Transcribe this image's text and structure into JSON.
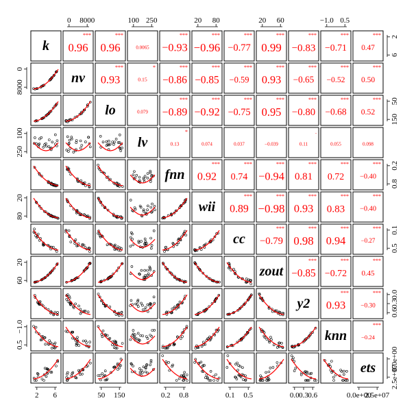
{
  "chart_data": {
    "type": "scatter",
    "variables": [
      "k",
      "nv",
      "lo",
      "lv",
      "fnn",
      "wii",
      "cc",
      "zout",
      "y2",
      "knn",
      "ets"
    ],
    "correlations": [
      [
        "",
        "0.96",
        "0.96",
        "0.0065",
        "−0.93",
        "−0.96",
        "−0.77",
        "0.99",
        "−0.83",
        "−0.71",
        "0.47"
      ],
      [
        "",
        "",
        "0.93",
        "0.15",
        "−0.86",
        "−0.85",
        "−0.59",
        "0.93",
        "−0.65",
        "−0.52",
        "0.50"
      ],
      [
        "",
        "",
        "",
        "0.079",
        "−0.89",
        "−0.92",
        "−0.75",
        "0.95",
        "−0.80",
        "−0.68",
        "0.52"
      ],
      [
        "",
        "",
        "",
        "",
        "0.13",
        "0.074",
        "0.037",
        "−0.039",
        "0.11",
        "0.055",
        "0.098"
      ],
      [
        "",
        "",
        "",
        "",
        "",
        "0.92",
        "0.74",
        "−0.94",
        "0.81",
        "0.72",
        "−0.40"
      ],
      [
        "",
        "",
        "",
        "",
        "",
        "",
        "0.89",
        "−0.98",
        "0.93",
        "0.83",
        "−0.40"
      ],
      [
        "",
        "",
        "",
        "",
        "",
        "",
        "",
        "−0.79",
        "0.98",
        "0.94",
        "−0.27"
      ],
      [
        "",
        "",
        "",
        "",
        "",
        "",
        "",
        "",
        "−0.85",
        "−0.72",
        "0.45"
      ],
      [
        "",
        "",
        "",
        "",
        "",
        "",
        "",
        "",
        "",
        "0.93",
        "−0.30"
      ],
      [
        "",
        "",
        "",
        "",
        "",
        "",
        "",
        "",
        "",
        "",
        "−0.24"
      ]
    ],
    "stars": [
      [
        "",
        "***",
        "***",
        "",
        "***",
        "***",
        "***",
        "***",
        "***",
        "***",
        "***"
      ],
      [
        "",
        "",
        "***",
        "*",
        "***",
        "***",
        "***",
        "***",
        "***",
        "***",
        "***"
      ],
      [
        "",
        "",
        "",
        "",
        "***",
        "***",
        "***",
        "***",
        "***",
        "***",
        "***"
      ],
      [
        "",
        "",
        "",
        "",
        "*",
        "",
        "",
        "",
        ".",
        "",
        ""
      ],
      [
        "",
        "",
        "",
        "",
        "",
        "***",
        "***",
        "***",
        "***",
        "***",
        "***"
      ],
      [
        "",
        "",
        "",
        "",
        "",
        "",
        "***",
        "***",
        "***",
        "***",
        "***"
      ],
      [
        "",
        "",
        "",
        "",
        "",
        "",
        "",
        "***",
        "***",
        "***",
        "***"
      ],
      [
        "",
        "",
        "",
        "",
        "",
        "",
        "",
        "",
        "***",
        "***",
        "***"
      ],
      [
        "",
        "",
        "",
        "",
        "",
        "",
        "",
        "",
        "",
        "***",
        "***"
      ],
      [
        "",
        "",
        "",
        "",
        "",
        "",
        "",
        "",
        "",
        "",
        "***"
      ]
    ],
    "ticks_top": [
      {
        "col": 1,
        "labels": [
          "0",
          "8000"
        ]
      },
      {
        "col": 3,
        "labels": [
          "100",
          "250"
        ]
      },
      {
        "col": 5,
        "labels": [
          "20",
          "80"
        ]
      },
      {
        "col": 7,
        "labels": [
          "20",
          "60"
        ]
      },
      {
        "col": 9,
        "labels": [
          "−1.0",
          "0.5"
        ]
      }
    ],
    "ticks_bottom": [
      {
        "col": 0,
        "labels": [
          "2",
          "6"
        ]
      },
      {
        "col": 2,
        "labels": [
          "50",
          "150"
        ]
      },
      {
        "col": 4,
        "labels": [
          "0.2",
          "0.8"
        ]
      },
      {
        "col": 6,
        "labels": [
          "0.1",
          "0.5"
        ]
      },
      {
        "col": 8,
        "labels": [
          "0.0",
          "0.3",
          "0.6"
        ]
      },
      {
        "col": 10,
        "labels": [
          "0.0e+00",
          "2.5e+07"
        ]
      }
    ],
    "ticks_left": [
      {
        "row": 1,
        "labels": [
          "0",
          "8000"
        ]
      },
      {
        "row": 3,
        "labels": [
          "100",
          "250"
        ]
      },
      {
        "row": 5,
        "labels": [
          "20",
          "80"
        ]
      },
      {
        "row": 7,
        "labels": [
          "20",
          "60"
        ]
      },
      {
        "row": 9,
        "labels": [
          "−1.0",
          "0.5"
        ]
      }
    ],
    "ticks_right": [
      {
        "row": 0,
        "labels": [
          "2",
          "6"
        ]
      },
      {
        "row": 2,
        "labels": [
          "50",
          "150"
        ]
      },
      {
        "row": 4,
        "labels": [
          "0.2",
          "0.8"
        ]
      },
      {
        "row": 6,
        "labels": [
          "0.1",
          "0.5"
        ]
      },
      {
        "row": 8,
        "labels": [
          "0.0",
          "0.3",
          "0.6"
        ]
      },
      {
        "row": 10,
        "labels": [
          "0.0e+00",
          "2.5e+07"
        ]
      }
    ],
    "colors": {
      "correlation_text": "#ff0000",
      "smoother": "#ff0000",
      "points": "#000000",
      "panel_border": "#000000"
    },
    "grid": false
  }
}
